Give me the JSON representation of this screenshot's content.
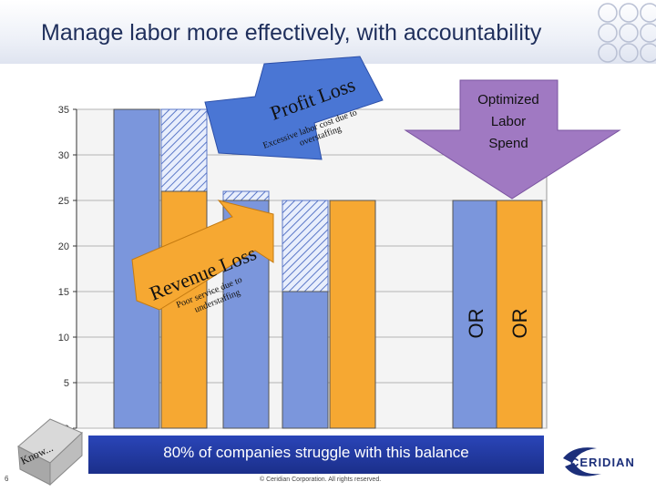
{
  "title": "Manage labor more effectively, with accountability",
  "chart_data": {
    "type": "bar",
    "ylim": [
      0,
      35
    ],
    "y_ticks": [
      0,
      5,
      10,
      15,
      20,
      25,
      30,
      35
    ],
    "grid": true,
    "bars": [
      {
        "value": 35,
        "color": "#7b96dc",
        "label": ""
      },
      {
        "value": 26,
        "color": "#f6a832",
        "label": "",
        "hatch_top": 35
      },
      {
        "value": 25,
        "color": "#7b96dc",
        "label": "",
        "hatch_top": 26
      },
      {
        "value": 15,
        "color": "#7b96dc",
        "label": "",
        "hatch_top": 25
      },
      {
        "value": 25,
        "color": "#f6a832",
        "label": ""
      },
      {
        "value": 25,
        "color": "#7b96dc",
        "label": "OR"
      },
      {
        "value": 25,
        "color": "#f6a832",
        "label": "OR"
      }
    ],
    "annotations": {
      "profit_loss": {
        "heading": "Profit Loss",
        "detail1": "Excessive labor cost due to",
        "detail2": "overstaffing"
      },
      "revenue_loss": {
        "heading": "Revenue Loss",
        "detail1": "Poor service due to",
        "detail2": "understaffing"
      },
      "optimized": {
        "line1": "Optimized",
        "line2": "Labor",
        "line3": "Spend"
      }
    }
  },
  "banner": "80% of companies struggle with this balance",
  "footer": "© Ceridian Corporation. All rights reserved.",
  "page_number": "6",
  "logo": "CERIDIAN",
  "cube_text": "Know..."
}
